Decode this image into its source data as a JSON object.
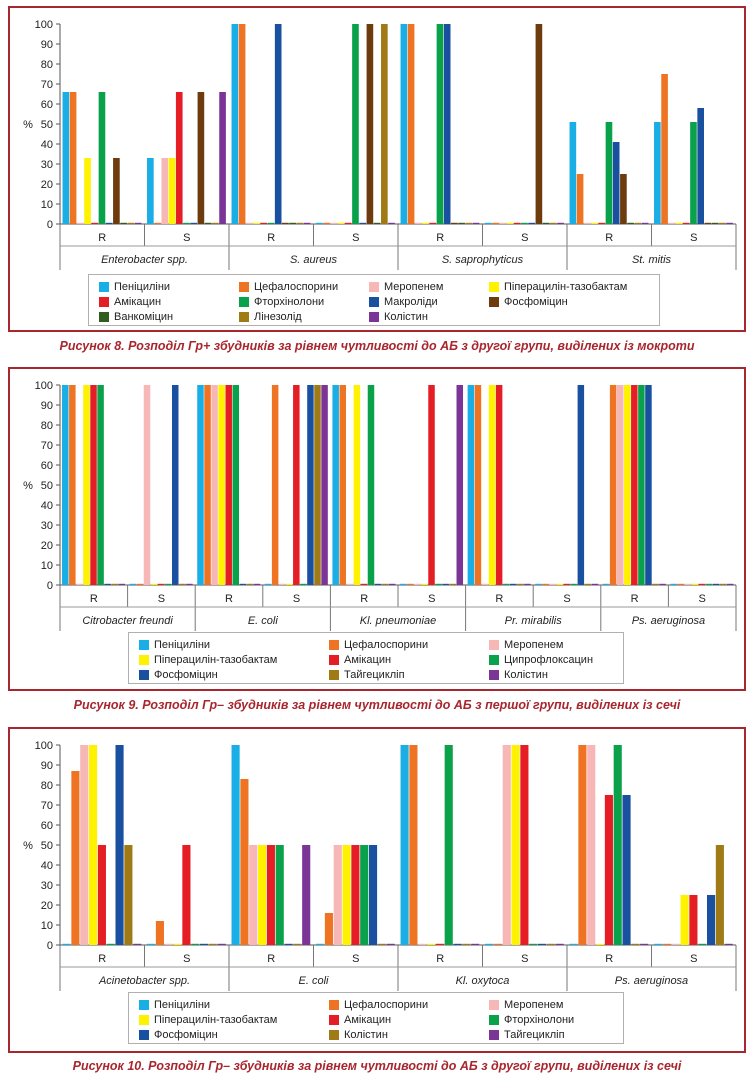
{
  "chart_data": [
    {
      "type": "bar",
      "ylabel": "%",
      "ylim": [
        0,
        100
      ],
      "yticks": [
        0,
        10,
        20,
        30,
        40,
        50,
        60,
        70,
        80,
        90,
        100
      ],
      "legend_position": "bottom",
      "groups": [
        "Enterobacter spp.",
        "S. aureus",
        "S. saprophyticus",
        "St. mitis"
      ],
      "categories": [
        "R",
        "S",
        "R",
        "S",
        "R",
        "S",
        "R",
        "S"
      ],
      "series": [
        {
          "name": "Пеніциліни",
          "color": "#1aaee6",
          "values": [
            66,
            33,
            100,
            0,
            100,
            0,
            51,
            51
          ]
        },
        {
          "name": "Цефалоспорини",
          "color": "#ee7424",
          "values": [
            66,
            0,
            100,
            0,
            100,
            0,
            25,
            75
          ]
        },
        {
          "name": "Меропенем",
          "color": "#f6b7b6",
          "values": [
            0,
            33,
            0,
            0,
            0,
            0,
            0,
            0
          ]
        },
        {
          "name": "Піперацилін-тазобактам",
          "color": "#fff200",
          "values": [
            33,
            33,
            0,
            0,
            0,
            0,
            0,
            0
          ]
        },
        {
          "name": "Амікацин",
          "color": "#e51e25",
          "values": [
            0,
            66,
            0,
            0,
            0,
            0,
            0,
            0
          ]
        },
        {
          "name": "Фторхінолони",
          "color": "#0aa14b",
          "values": [
            66,
            0,
            0,
            100,
            100,
            0,
            51,
            51
          ]
        },
        {
          "name": "Макроліди",
          "color": "#1951a0",
          "values": [
            0,
            0,
            100,
            0,
            100,
            0,
            41,
            58
          ]
        },
        {
          "name": "Фосфоміцин",
          "color": "#6e3b0f",
          "values": [
            33,
            66,
            0,
            100,
            0,
            100,
            25,
            0
          ]
        },
        {
          "name": "Ванкоміцин",
          "color": "#2f5d1f",
          "values": [
            0,
            0,
            0,
            0,
            0,
            0,
            0,
            0
          ]
        },
        {
          "name": "Лінезолід",
          "color": "#a07a14",
          "values": [
            0,
            0,
            0,
            100,
            0,
            0,
            0,
            0
          ]
        },
        {
          "name": "Колістин",
          "color": "#7b3596",
          "values": [
            0,
            66,
            0,
            0,
            0,
            0,
            0,
            0
          ]
        }
      ]
    },
    {
      "type": "bar",
      "ylabel": "%",
      "ylim": [
        0,
        100
      ],
      "yticks": [
        0,
        10,
        20,
        30,
        40,
        50,
        60,
        70,
        80,
        90,
        100
      ],
      "legend_position": "bottom",
      "groups": [
        "Citrobacter freundi",
        "E. coli",
        "Kl. pneumoniae",
        "Pr. mirabilis",
        "Ps. aeruginosa"
      ],
      "categories": [
        "R",
        "S",
        "R",
        "S",
        "R",
        "S",
        "R",
        "S",
        "R",
        "S"
      ],
      "series": [
        {
          "name": "Пеніциліни",
          "color": "#1aaee6",
          "values": [
            100,
            0,
            100,
            0,
            100,
            0,
            100,
            0,
            0,
            0
          ]
        },
        {
          "name": "Цефалоспорини",
          "color": "#ee7424",
          "values": [
            100,
            0,
            100,
            100,
            100,
            0,
            100,
            0,
            100,
            0
          ]
        },
        {
          "name": "Меропенем",
          "color": "#f6b7b6",
          "values": [
            0,
            100,
            100,
            0,
            0,
            0,
            0,
            0,
            100,
            0
          ]
        },
        {
          "name": "Піперацилін-тазобактам",
          "color": "#fff200",
          "values": [
            100,
            0,
            100,
            0,
            100,
            0,
            100,
            0,
            100,
            0
          ]
        },
        {
          "name": "Амікацин",
          "color": "#e51e25",
          "values": [
            100,
            0,
            100,
            100,
            0,
            100,
            100,
            0,
            100,
            0
          ]
        },
        {
          "name": "Ципрофлоксацин",
          "color": "#0aa14b",
          "values": [
            100,
            0,
            100,
            0,
            100,
            0,
            0,
            0,
            100,
            0
          ]
        },
        {
          "name": "Фосфоміцин",
          "color": "#1951a0",
          "values": [
            0,
            100,
            0,
            100,
            0,
            0,
            0,
            100,
            100,
            0
          ]
        },
        {
          "name": "Тайгецикліп",
          "color": "#a07a14",
          "values": [
            0,
            0,
            0,
            100,
            0,
            0,
            0,
            0,
            0,
            0
          ]
        },
        {
          "name": "Колістин",
          "color": "#7b3596",
          "values": [
            0,
            0,
            0,
            100,
            0,
            100,
            0,
            0,
            0,
            0
          ]
        }
      ]
    },
    {
      "type": "bar",
      "ylabel": "%",
      "ylim": [
        0,
        100
      ],
      "yticks": [
        0,
        10,
        20,
        30,
        40,
        50,
        60,
        70,
        80,
        90,
        100
      ],
      "legend_position": "bottom",
      "groups": [
        "Acinetobacter spp.",
        "E. coli",
        "Kl. oxytoca",
        "Ps. aeruginosa"
      ],
      "categories": [
        "R",
        "S",
        "R",
        "S",
        "R",
        "S",
        "R",
        "S"
      ],
      "series": [
        {
          "name": "Пеніциліни",
          "color": "#1aaee6",
          "values": [
            0,
            0,
            100,
            0,
            100,
            0,
            0,
            0
          ]
        },
        {
          "name": "Цефалоспорини",
          "color": "#ee7424",
          "values": [
            87,
            12,
            83,
            16,
            100,
            0,
            100,
            0
          ]
        },
        {
          "name": "Меропенем",
          "color": "#f6b7b6",
          "values": [
            100,
            0,
            50,
            50,
            0,
            100,
            100,
            0
          ]
        },
        {
          "name": "Піперацилін-тазобактам",
          "color": "#fff200",
          "values": [
            100,
            0,
            50,
            50,
            0,
            100,
            0,
            25
          ]
        },
        {
          "name": "Амікацин",
          "color": "#e51e25",
          "values": [
            50,
            50,
            50,
            50,
            0,
            100,
            75,
            25
          ]
        },
        {
          "name": "Фторхінолони",
          "color": "#0aa14b",
          "values": [
            0,
            0,
            50,
            50,
            100,
            0,
            100,
            0
          ]
        },
        {
          "name": "Фосфоміцин",
          "color": "#1951a0",
          "values": [
            100,
            0,
            0,
            50,
            0,
            0,
            75,
            25
          ]
        },
        {
          "name": "Колістин",
          "color": "#a07a14",
          "values": [
            50,
            0,
            0,
            0,
            0,
            0,
            0,
            50
          ]
        },
        {
          "name": "Тайгецикліп",
          "color": "#7b3596",
          "values": [
            0,
            0,
            50,
            0,
            0,
            0,
            0,
            0
          ]
        }
      ]
    }
  ],
  "captions": [
    "Рисунок 8.  Розподіл Гр+ збудників за рівнем чутливості до АБ з другої групи, виділених із мокроти",
    "Рисунок 9. Розподіл Гр– збудників за рівнем чутливості до АБ з першої групи, виділених із сечі",
    "Рисунок 10.  Розподіл Гр– збудників за рівнем чутливості до АБ з другої групи, виділених із сечі"
  ]
}
